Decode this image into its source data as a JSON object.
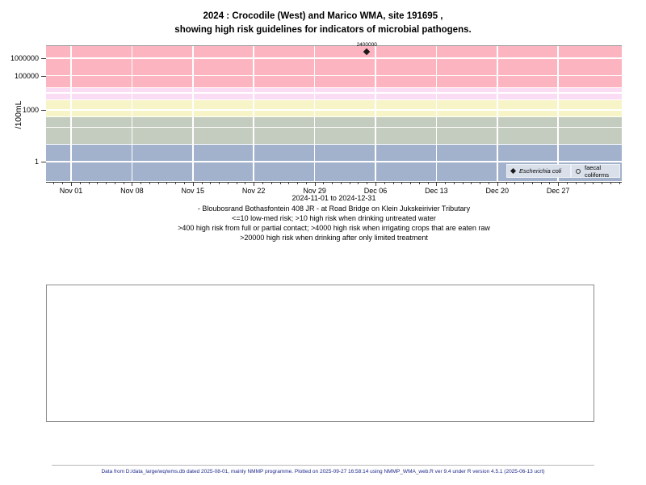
{
  "title": {
    "line1": "2024 : Crocodile (West) and Marico WMA, site 191695 ,",
    "line2": "showing high risk guidelines for indicators of microbial pathogens."
  },
  "captions": {
    "date_range": "2024-11-01 to 2024-12-31",
    "site": "- Bloubosrand Bothasfontein 408 JR - at Road Bridge on Klein Jukskeirivier Tributary",
    "risk_line1": "<=10 low-med risk; >10 high risk when drinking untreated water",
    "risk_line2": ">400 high risk from full or partial contact; >4000 high risk when irrigating crops that are eaten raw",
    "risk_line3": ">20000 high risk when drinking after only limited treatment"
  },
  "footer": {
    "text": "Data from D:/data_large/wq/wms.db dated 2025-08-01, mainly NMMP programme. Plotted on 2025-09-27 16:58:14 using NMMP_WMA_web.R ver 9.4 under R version 4.5.1 (2025-06-13 ucrt)"
  },
  "chart_data": {
    "type": "scatter",
    "title": "2024 : Crocodile (West) and Marico WMA, site 191695 , showing high risk guidelines for indicators of microbial pathogens.",
    "y_axis": {
      "label": "/100mL",
      "scale": "log",
      "ticks": [
        1,
        1000,
        100000,
        1000000
      ],
      "gridlines": [
        1,
        10,
        100,
        1000,
        10000,
        100000,
        1000000
      ],
      "range_approx": [
        0.08,
        5000000
      ]
    },
    "x_axis": {
      "start": "2024-11-01",
      "end": "2024-12-31",
      "tick_labels": [
        "Nov 01",
        "Nov 08",
        "Nov 15",
        "Nov 22",
        "Nov 29",
        "Dec 06",
        "Dec 13",
        "Dec 20",
        "Dec 27"
      ],
      "tick_interval_days": 7,
      "minor_tick_days": 1
    },
    "bands": [
      {
        "name": "low-med risk (<=10)",
        "from": null,
        "to": 10,
        "color": "#A2B2CD"
      },
      {
        "name": "high risk when drinking untreated water (>10)",
        "from": 10,
        "to": 400,
        "color": "#C3CCBF"
      },
      {
        "name": "high risk from full or partial contact (>400)",
        "from": 400,
        "to": 4000,
        "color": "#F7F5C8"
      },
      {
        "name": "high risk when irrigating crops that are eaten raw (>4000)",
        "from": 4000,
        "to": 20000,
        "color": "#FADCF5"
      },
      {
        "name": "high risk when drinking after only limited treatment (>20000)",
        "from": 20000,
        "to": null,
        "color": "#FCB4C0"
      }
    ],
    "series": [
      {
        "name": "Escherichia coli",
        "marker": "filled-diamond",
        "points": [
          {
            "date": "2024-12-05",
            "value": 2400000,
            "label": "2400000"
          }
        ]
      },
      {
        "name": "faecal coliforms",
        "marker": "open-circle",
        "points": []
      }
    ],
    "legend": {
      "position": "bottom-right-inside",
      "entries": [
        "Escherichia coli",
        "faecal coliforms"
      ]
    }
  }
}
